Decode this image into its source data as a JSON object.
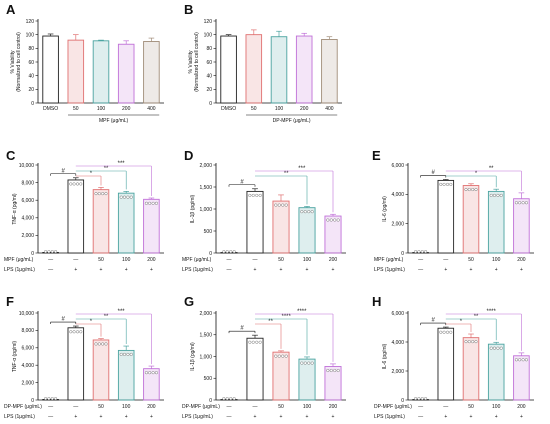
{
  "chart_data": [
    {
      "id": "A",
      "type": "bar",
      "letter": "A",
      "ylabel": "% Viability",
      "ylabel2": "(Normalized to cell control)",
      "ylim": [
        0,
        120
      ],
      "yticks": [
        0,
        20,
        40,
        60,
        80,
        100,
        120
      ],
      "categories": [
        "DMSO",
        "50",
        "100",
        "200",
        "400"
      ],
      "values": [
        98,
        92,
        91,
        86,
        90
      ],
      "errors": [
        3,
        8,
        1,
        5,
        5
      ],
      "colors": [
        "#222222",
        "#e07070",
        "#4aa3a0",
        "#c070d8",
        "#a08c78"
      ],
      "show_points": false,
      "group_label": "MPF (μg/mL)",
      "group_from": 1,
      "group_to": 4,
      "rows": [],
      "sig": []
    },
    {
      "id": "B",
      "type": "bar",
      "letter": "B",
      "ylabel": "% Viability",
      "ylabel2": "(Normalized to cell control)",
      "ylim": [
        0,
        120
      ],
      "yticks": [
        0,
        20,
        40,
        60,
        80,
        100,
        120
      ],
      "categories": [
        "DMSO",
        "50",
        "100",
        "200",
        "400"
      ],
      "values": [
        98,
        100,
        97,
        98,
        93
      ],
      "errors": [
        2,
        7,
        8,
        4,
        4
      ],
      "colors": [
        "#222222",
        "#e07070",
        "#4aa3a0",
        "#c070d8",
        "#a08c78"
      ],
      "show_points": false,
      "group_label": "DP-MPF (μg/mL)",
      "group_from": 1,
      "group_to": 4,
      "rows": [],
      "sig": []
    },
    {
      "id": "C",
      "type": "bar",
      "letter": "C",
      "ylabel": "TNF-α (pg/ml)",
      "ylim": [
        0,
        10000
      ],
      "yticks": [
        0,
        2000,
        4000,
        6000,
        8000,
        10000
      ],
      "ytick_labels": [
        "0",
        "2,000",
        "4,000",
        "6,000",
        "8,000",
        "10,000"
      ],
      "categories": [
        "",
        "",
        "",
        "",
        ""
      ],
      "values": [
        60,
        8300,
        7200,
        6800,
        6100
      ],
      "errors": [
        0,
        250,
        250,
        200,
        150
      ],
      "colors": [
        "#222222",
        "#222222",
        "#e07070",
        "#4aa3a0",
        "#c070d8"
      ],
      "show_points": true,
      "rows": [
        {
          "label": "MPF (μg/mL)",
          "values": [
            "—",
            "—",
            "50",
            "100",
            "200"
          ]
        },
        {
          "label": "LPS (1μg/mL)",
          "values": [
            "—",
            "+",
            "+",
            "+",
            "+"
          ]
        }
      ],
      "sig": [
        {
          "from": 0,
          "to": 1,
          "label": "#",
          "level": 0
        },
        {
          "from": 1,
          "to": 2,
          "label": "*",
          "level": 0
        },
        {
          "from": 1,
          "to": 3,
          "label": "**",
          "level": 1
        },
        {
          "from": 1,
          "to": 4,
          "label": "***",
          "level": 2
        }
      ]
    },
    {
      "id": "D",
      "type": "bar",
      "letter": "D",
      "ylabel": "IL-1β (pg/ml)",
      "ylim": [
        0,
        2000
      ],
      "yticks": [
        0,
        500,
        1000,
        1500,
        2000
      ],
      "ytick_labels": [
        "0",
        "500",
        "1,000",
        "1,500",
        "2,000"
      ],
      "categories": [
        "",
        "",
        "",
        "",
        ""
      ],
      "values": [
        10,
        1400,
        1180,
        1030,
        840
      ],
      "errors": [
        0,
        60,
        140,
        30,
        40
      ],
      "colors": [
        "#222222",
        "#222222",
        "#e07070",
        "#4aa3a0",
        "#c070d8"
      ],
      "show_points": true,
      "rows": [
        {
          "label": "MPF (μg/mL)",
          "values": [
            "—",
            "—",
            "50",
            "100",
            "200"
          ]
        },
        {
          "label": "LPS (1μg/mL)",
          "values": [
            "—",
            "+",
            "+",
            "+",
            "+"
          ]
        }
      ],
      "sig": [
        {
          "from": 0,
          "to": 1,
          "label": "#",
          "level": 0
        },
        {
          "from": 1,
          "to": 3,
          "label": "**",
          "level": 0
        },
        {
          "from": 1,
          "to": 4,
          "label": "***",
          "level": 1
        }
      ]
    },
    {
      "id": "E",
      "type": "bar",
      "letter": "E",
      "ylabel": "IL-6 (pg/ml)",
      "ylim": [
        0,
        6000
      ],
      "yticks": [
        0,
        2000,
        4000,
        6000
      ],
      "ytick_labels": [
        "0",
        "2,000",
        "4,000",
        "6,000"
      ],
      "categories": [
        "",
        "",
        "",
        "",
        ""
      ],
      "values": [
        30,
        4950,
        4600,
        4200,
        3700
      ],
      "errors": [
        0,
        60,
        120,
        150,
        400
      ],
      "colors": [
        "#222222",
        "#222222",
        "#e07070",
        "#4aa3a0",
        "#c070d8"
      ],
      "show_points": true,
      "rows": [
        {
          "label": "MPF (μg/mL)",
          "values": [
            "—",
            "—",
            "50",
            "100",
            "200"
          ]
        },
        {
          "label": "LPS (1μg/mL)",
          "values": [
            "—",
            "+",
            "+",
            "+",
            "+"
          ]
        }
      ],
      "sig": [
        {
          "from": 0,
          "to": 1,
          "label": "#",
          "level": 0
        },
        {
          "from": 1,
          "to": 3,
          "label": "*",
          "level": 0
        },
        {
          "from": 1,
          "to": 4,
          "label": "**",
          "level": 1
        }
      ]
    },
    {
      "id": "F",
      "type": "bar",
      "letter": "F",
      "ylabel": "TNF-α (pg/ml)",
      "ylim": [
        0,
        10000
      ],
      "yticks": [
        0,
        2000,
        4000,
        6000,
        8000,
        10000
      ],
      "ytick_labels": [
        "0",
        "2,000",
        "4,000",
        "6,000",
        "8,000",
        "10,000"
      ],
      "categories": [
        "",
        "",
        "",
        "",
        ""
      ],
      "values": [
        60,
        8300,
        6900,
        5700,
        3600
      ],
      "errors": [
        0,
        200,
        150,
        500,
        300
      ],
      "colors": [
        "#222222",
        "#222222",
        "#e07070",
        "#4aa3a0",
        "#c070d8"
      ],
      "show_points": true,
      "rows": [
        {
          "label": "DP-MPF (μg/mL)",
          "values": [
            "—",
            "—",
            "50",
            "100",
            "200"
          ]
        },
        {
          "label": "LPS (1μg/mL)",
          "values": [
            "—",
            "+",
            "+",
            "+",
            "+"
          ]
        }
      ],
      "sig": [
        {
          "from": 0,
          "to": 1,
          "label": "#",
          "level": 0
        },
        {
          "from": 1,
          "to": 2,
          "label": "*",
          "level": 0
        },
        {
          "from": 1,
          "to": 3,
          "label": "**",
          "level": 1
        },
        {
          "from": 1,
          "to": 4,
          "label": "***",
          "level": 2
        }
      ]
    },
    {
      "id": "G",
      "type": "bar",
      "letter": "G",
      "ylabel": "IL-1β (pg/ml)",
      "ylim": [
        0,
        2000
      ],
      "yticks": [
        0,
        500,
        1000,
        1500,
        2000
      ],
      "ytick_labels": [
        "0",
        "500",
        "1,000",
        "1,500",
        "2,000"
      ],
      "categories": [
        "",
        "",
        "",
        "",
        ""
      ],
      "values": [
        10,
        1420,
        1100,
        940,
        770
      ],
      "errors": [
        0,
        70,
        30,
        50,
        60
      ],
      "colors": [
        "#222222",
        "#222222",
        "#e07070",
        "#4aa3a0",
        "#c070d8"
      ],
      "show_points": true,
      "rows": [
        {
          "label": "DP-MPF (μg/mL)",
          "values": [
            "—",
            "—",
            "50",
            "100",
            "200"
          ]
        },
        {
          "label": "LPS (1μg/mL)",
          "values": [
            "—",
            "+",
            "+",
            "+",
            "+"
          ]
        }
      ],
      "sig": [
        {
          "from": 0,
          "to": 1,
          "label": "#",
          "level": 0
        },
        {
          "from": 1,
          "to": 2,
          "label": "**",
          "level": 0
        },
        {
          "from": 1,
          "to": 3,
          "label": "****",
          "level": 1
        },
        {
          "from": 1,
          "to": 4,
          "label": "****",
          "level": 2
        }
      ]
    },
    {
      "id": "H",
      "type": "bar",
      "letter": "H",
      "ylabel": "IL-6 (pg/ml)",
      "ylim": [
        0,
        6000
      ],
      "yticks": [
        0,
        2000,
        4000,
        6000
      ],
      "ytick_labels": [
        "0",
        "2,000",
        "4,000",
        "6,000"
      ],
      "categories": [
        "",
        "",
        "",
        "",
        ""
      ],
      "values": [
        30,
        4950,
        4300,
        3850,
        3050
      ],
      "errors": [
        0,
        80,
        250,
        130,
        200
      ],
      "colors": [
        "#222222",
        "#222222",
        "#e07070",
        "#4aa3a0",
        "#c070d8"
      ],
      "show_points": true,
      "rows": [
        {
          "label": "DP-MPF (μg/mL)",
          "values": [
            "—",
            "—",
            "50",
            "100",
            "200"
          ]
        },
        {
          "label": "LPS (1μg/mL)",
          "values": [
            "—",
            "+",
            "+",
            "+",
            "+"
          ]
        }
      ],
      "sig": [
        {
          "from": 0,
          "to": 1,
          "label": "#",
          "level": 0
        },
        {
          "from": 1,
          "to": 2,
          "label": "*",
          "level": 0
        },
        {
          "from": 1,
          "to": 3,
          "label": "**",
          "level": 1
        },
        {
          "from": 1,
          "to": 4,
          "label": "****",
          "level": 2
        }
      ]
    }
  ]
}
